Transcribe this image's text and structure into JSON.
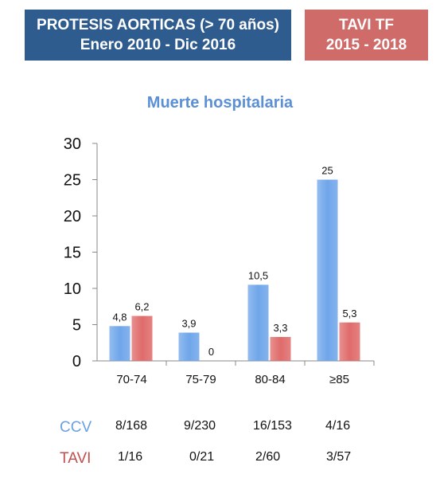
{
  "header": {
    "left_line1": "PROTESIS AORTICAS  (> 70 años)",
    "left_line2": "Enero 2010 - Dic 2016",
    "right_line1": "TAVI TF",
    "right_line2": "2015 - 2018",
    "left_bg": "#2f5c8f",
    "right_bg": "#cf6b68"
  },
  "chart_data": {
    "type": "bar",
    "title": "Muerte hospitalaria",
    "categories": [
      "70-74",
      "75-79",
      "80-84",
      "≥85"
    ],
    "series": [
      {
        "values": [
          4.8,
          3.9,
          10.5,
          25
        ],
        "labels": [
          "4,8",
          "3,9",
          "10,5",
          "25"
        ],
        "color": "#6fa6ea"
      },
      {
        "values": [
          6.2,
          0,
          3.3,
          5.3
        ],
        "labels": [
          "6,2",
          "0",
          "3,3",
          "5,3"
        ],
        "color": "#e06b6b"
      }
    ],
    "ylim": [
      0,
      30
    ],
    "yticks": [
      "0",
      "5",
      "10",
      "15",
      "20",
      "25",
      "30"
    ],
    "grid": false,
    "xlabel": "",
    "ylabel": ""
  },
  "table": {
    "rows": [
      {
        "label": "CCV",
        "label_color": "#6a9fe0",
        "values": [
          "8/168",
          "9/230",
          "16/153",
          "4/16"
        ]
      },
      {
        "label": "TAVI",
        "label_color": "#c0504d",
        "values": [
          "1/16",
          "0/21",
          "2/60",
          "3/57"
        ]
      }
    ]
  }
}
